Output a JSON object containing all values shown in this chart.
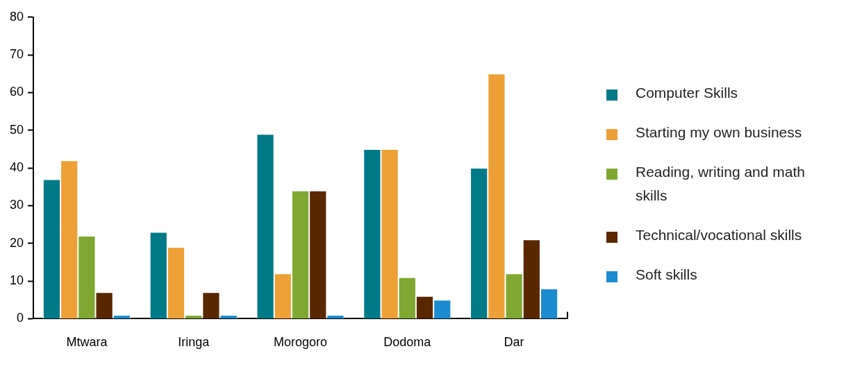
{
  "chart_data": {
    "type": "bar",
    "categories": [
      "Mtwara",
      "Iringa",
      "Morogoro",
      "Dodoma",
      "Dar"
    ],
    "series": [
      {
        "name": "Computer Skills",
        "color": "#007a87",
        "values": [
          37,
          23,
          49,
          45,
          40
        ]
      },
      {
        "name": "Starting my own business",
        "color": "#eda035",
        "values": [
          42,
          19,
          12,
          45,
          65
        ]
      },
      {
        "name": "Reading, writing and math skills",
        "color": "#7ea832",
        "values": [
          22,
          1,
          34,
          11,
          12
        ]
      },
      {
        "name": "Technical/vocational skills",
        "color": "#5a2800",
        "values": [
          7,
          7,
          34,
          6,
          21
        ]
      },
      {
        "name": "Soft skills",
        "color": "#1a8ccf",
        "values": [
          1,
          1,
          1,
          5,
          8
        ]
      }
    ],
    "ylim": [
      0,
      80
    ],
    "yticks": [
      0,
      10,
      20,
      30,
      40,
      50,
      60,
      70,
      80
    ],
    "grid": false,
    "legend": "right"
  }
}
